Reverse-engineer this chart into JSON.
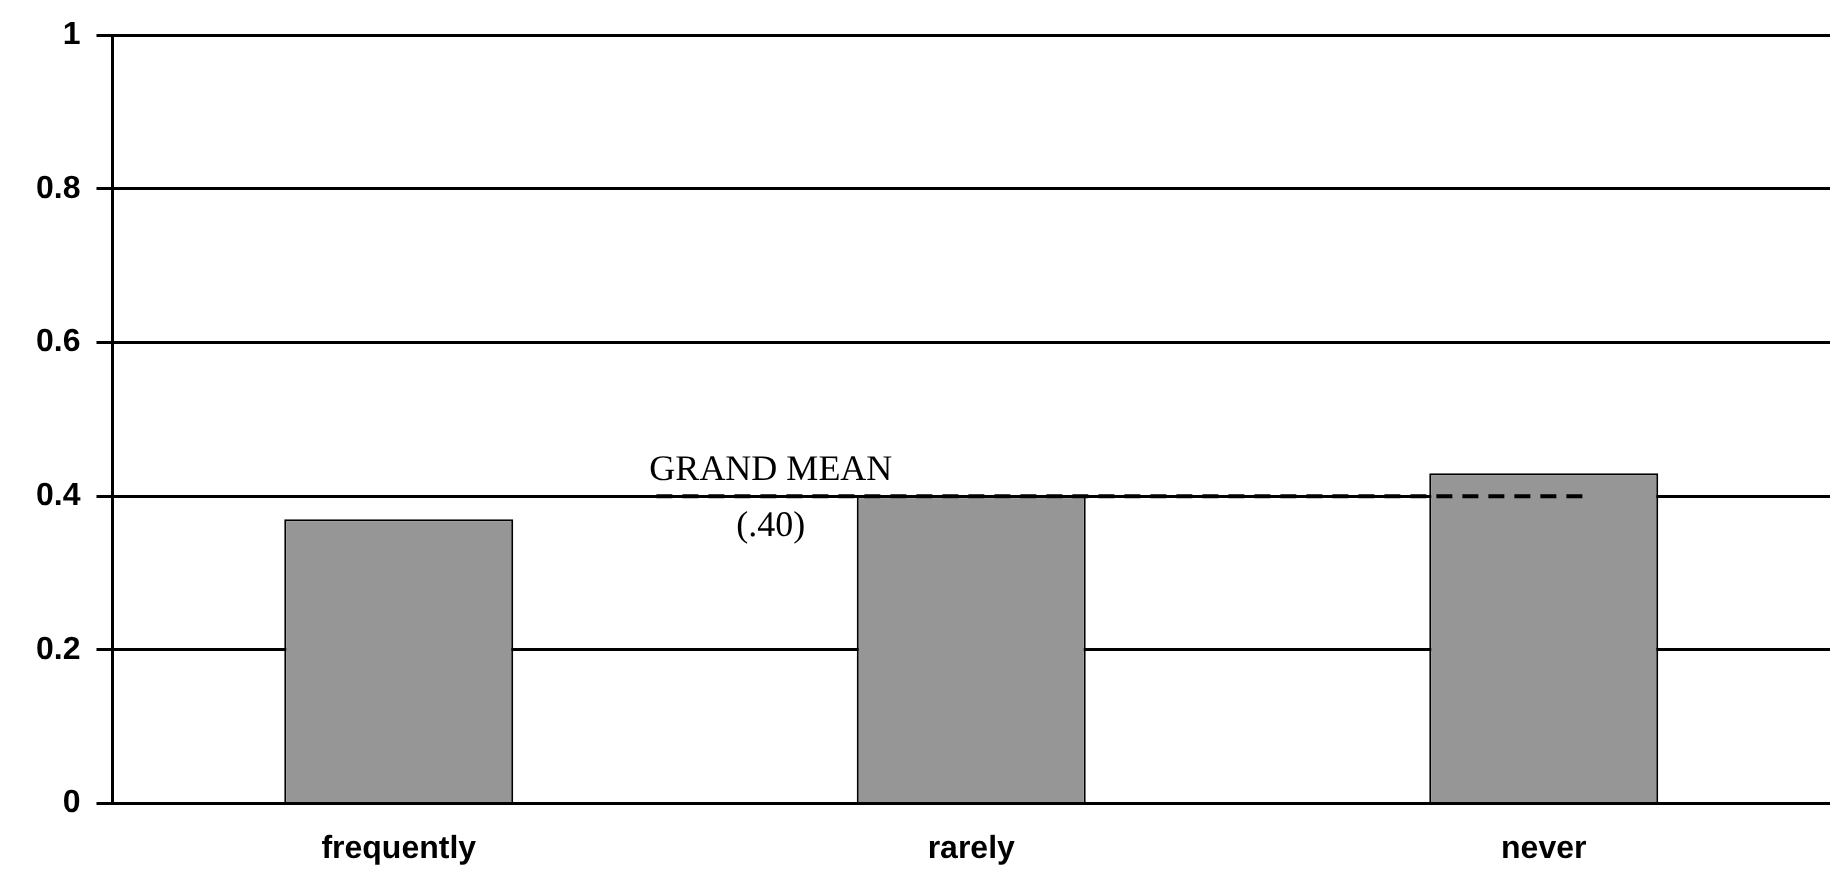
{
  "chart_data": {
    "type": "bar",
    "categories": [
      "frequently",
      "rarely",
      "never"
    ],
    "values": [
      0.37,
      0.4,
      0.43
    ],
    "color": "#969696",
    "ylim": [
      0,
      1
    ],
    "yticks": [
      0,
      0.2,
      0.4,
      0.6,
      0.8,
      1
    ],
    "grid": "y",
    "legend": false,
    "ref_lines": [
      {
        "axis": "y",
        "value": 0.4,
        "label": "GRAND MEAN",
        "line_style": "dashed",
        "color": "#000000"
      }
    ],
    "annotations": [
      "(.40)"
    ]
  }
}
